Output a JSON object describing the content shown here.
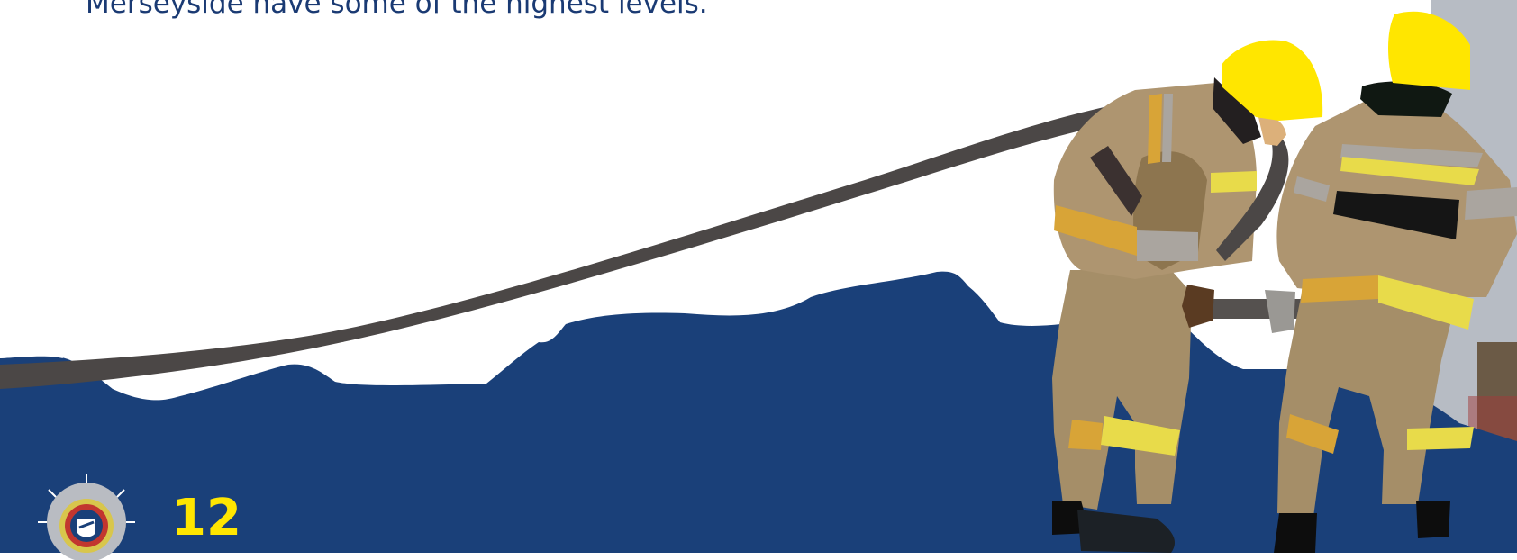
{
  "page": {
    "body_text": "Merseyside have some of the highest levels.",
    "page_number": "12"
  },
  "colors": {
    "navy": "#1a4079",
    "text_navy": "#1a3a73",
    "hose": "#4b4746",
    "helmet_yellow": "#ffe600",
    "reflective_yellow": "#e8db4a",
    "kit_tan": "#a58e68"
  },
  "illustration": {
    "logo_icon": "fire-service-crest-icon",
    "figures": "two-firefighters-with-hose-icon"
  }
}
